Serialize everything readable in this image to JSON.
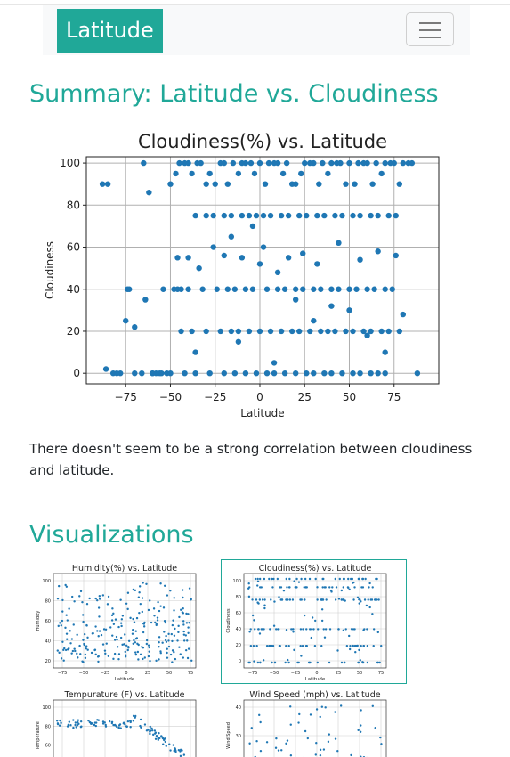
{
  "navbar": {
    "brand": "Latitude",
    "menu_icon": "hamburger-icon"
  },
  "summary": {
    "heading": "Summary: Latitude vs. Cloudiness",
    "text": "There doesn't seem to be a strong correlation between cloudiness and latitude."
  },
  "visualizations": {
    "heading": "Visualizations"
  },
  "colors": {
    "accent": "#20a898",
    "points": "#1f77b4"
  },
  "chart_data": [
    {
      "type": "scatter",
      "title": "Cloudiness(%) vs. Latitude",
      "xlabel": "Latitude",
      "ylabel": "Cloudiness",
      "xlim": [
        -97,
        100
      ],
      "ylim": [
        -5,
        103
      ],
      "xticks": [
        -75,
        -50,
        -25,
        0,
        25,
        50,
        75
      ],
      "yticks": [
        0,
        20,
        40,
        60,
        80,
        100
      ],
      "grid": true,
      "note": "approximate sample of the scattered points",
      "x": [
        -88,
        -82,
        -73,
        -70,
        -65,
        -60,
        -55,
        -50,
        -45,
        -40,
        -35,
        -30,
        -25,
        -20,
        -15,
        -10,
        -5,
        0,
        5,
        10,
        15,
        20,
        25,
        30,
        35,
        40,
        45,
        50,
        55,
        60,
        65,
        70,
        75,
        80,
        85,
        -85,
        -78,
        -66,
        -56,
        -47,
        -42,
        -38,
        -33,
        -28,
        -22,
        -18,
        -12,
        -8,
        -3,
        3,
        8,
        13,
        18,
        23,
        28,
        33,
        38,
        43,
        48,
        53,
        58,
        63,
        68,
        73,
        78,
        83,
        -80,
        -75,
        -60,
        -52,
        -48,
        -44,
        -36,
        -30,
        -26,
        -20,
        -16,
        -10,
        -6,
        -2,
        2,
        6,
        12,
        16,
        22,
        26,
        32,
        36,
        42,
        46,
        52,
        56,
        62,
        66,
        72,
        76,
        -74,
        -54,
        -46,
        -40,
        -32,
        -24,
        -18,
        -14,
        -8,
        -4,
        4,
        10,
        14,
        20,
        24,
        30,
        34,
        40,
        44,
        50,
        54,
        60,
        64,
        70,
        74,
        -70,
        -58,
        -44,
        -38,
        -30,
        -22,
        -16,
        -12,
        -6,
        0,
        6,
        12,
        18,
        22,
        28,
        34,
        38,
        42,
        48,
        52,
        58,
        62,
        68,
        72,
        78,
        -50,
        -42,
        -36,
        -28,
        -20,
        -14,
        -8,
        -2,
        4,
        8,
        14,
        20,
        26,
        30,
        36,
        40,
        46,
        52,
        56,
        62,
        66,
        70,
        -46,
        -34,
        -26,
        -16,
        -10,
        -4,
        2,
        10,
        16,
        24,
        32,
        44,
        56,
        66,
        76,
        -62,
        -40,
        -20,
        0,
        20,
        40,
        60,
        80,
        -86,
        -64,
        -36,
        -12,
        8,
        30,
        50,
        70,
        88
      ],
      "y": [
        90,
        0,
        40,
        0,
        100,
        0,
        0,
        90,
        100,
        100,
        100,
        90,
        90,
        100,
        100,
        100,
        100,
        100,
        100,
        100,
        100,
        90,
        100,
        100,
        100,
        100,
        100,
        100,
        100,
        100,
        100,
        100,
        100,
        100,
        100,
        90,
        0,
        0,
        0,
        95,
        100,
        95,
        100,
        95,
        100,
        90,
        95,
        100,
        95,
        90,
        100,
        95,
        90,
        95,
        100,
        90,
        95,
        100,
        90,
        90,
        100,
        90,
        95,
        100,
        90,
        100,
        0,
        25,
        0,
        0,
        40,
        40,
        75,
        75,
        75,
        75,
        75,
        75,
        75,
        75,
        75,
        75,
        75,
        75,
        75,
        75,
        75,
        75,
        75,
        75,
        75,
        75,
        75,
        75,
        75,
        75,
        40,
        40,
        40,
        40,
        40,
        40,
        40,
        40,
        40,
        40,
        40,
        40,
        40,
        40,
        40,
        40,
        40,
        40,
        40,
        40,
        40,
        40,
        40,
        40,
        40,
        22,
        0,
        20,
        20,
        20,
        20,
        20,
        20,
        20,
        20,
        20,
        20,
        20,
        20,
        20,
        20,
        20,
        20,
        20,
        20,
        20,
        20,
        20,
        20,
        20,
        0,
        0,
        0,
        0,
        0,
        0,
        0,
        0,
        0,
        0,
        0,
        0,
        0,
        0,
        0,
        0,
        0,
        0,
        0,
        0,
        0,
        0,
        55,
        50,
        60,
        65,
        55,
        70,
        60,
        48,
        55,
        57,
        52,
        62,
        54,
        58,
        56,
        86,
        55,
        56,
        52,
        35,
        32,
        18,
        28,
        2,
        35,
        10,
        15,
        5,
        25,
        30,
        10,
        0
      ]
    },
    {
      "type": "scatter",
      "title": "Humidity(%) vs. Latitude",
      "xlabel": "Latitude",
      "ylabel": "Humidity",
      "xlim": [
        -97,
        100
      ],
      "ylim": [
        5,
        105
      ],
      "xticks": [
        -75,
        -50,
        -25,
        0,
        25,
        50,
        75
      ],
      "yticks": [
        20,
        40,
        60,
        80,
        100
      ]
    },
    {
      "type": "scatter",
      "title": "Cloudiness(%) vs. Latitude",
      "xlabel": "Latitude",
      "ylabel": "Cloudiness",
      "xlim": [
        -97,
        100
      ],
      "ylim": [
        -5,
        103
      ],
      "xticks": [
        -75,
        -50,
        -25,
        0,
        25,
        50,
        75
      ],
      "yticks": [
        0,
        20,
        40,
        60,
        80,
        100
      ]
    },
    {
      "type": "scatter",
      "title": "Tempurature (F) vs. Latitude",
      "xlabel": "Latitude",
      "ylabel": "Temperature",
      "yticks": [
        40,
        60,
        80,
        100
      ]
    },
    {
      "type": "scatter",
      "title": "Wind Speed (mph) vs. Latitude",
      "xlabel": "Latitude",
      "ylabel": "Wind Speed",
      "yticks": [
        20,
        30,
        40
      ]
    }
  ]
}
